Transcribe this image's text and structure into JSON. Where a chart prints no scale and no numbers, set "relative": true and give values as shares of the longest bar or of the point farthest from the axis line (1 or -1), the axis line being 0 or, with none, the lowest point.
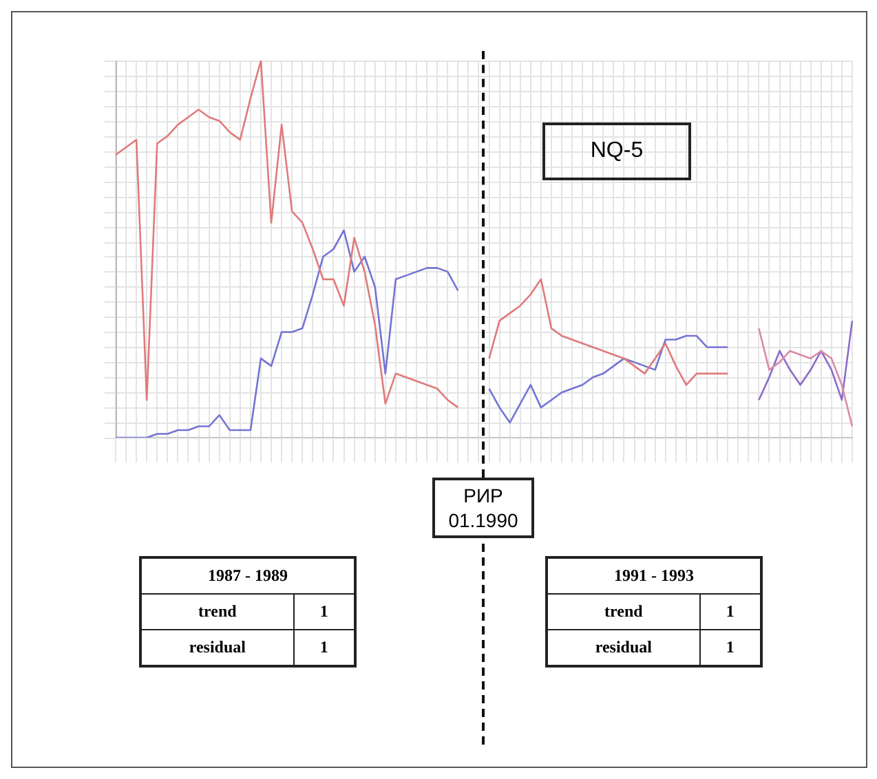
{
  "chart_data": {
    "type": "line",
    "relative": true,
    "grid": true,
    "marker": "none",
    "categories": [
      null,
      null,
      null,
      null,
      null,
      null,
      null,
      null,
      null,
      null,
      null,
      null,
      null,
      null,
      null,
      null,
      null,
      null,
      null,
      null,
      null,
      null,
      null,
      null,
      null,
      null,
      null,
      null,
      null,
      null,
      null,
      null,
      null,
      null,
      null,
      null,
      null,
      null,
      null,
      null,
      null,
      null,
      null,
      null,
      null,
      null,
      null,
      null,
      null,
      null,
      null,
      null,
      null,
      null,
      null,
      null,
      null,
      null,
      null,
      null,
      null,
      null,
      null,
      null,
      null,
      null,
      null,
      null,
      null,
      null,
      null,
      null
    ],
    "series": [
      {
        "color": "#e07a7a",
        "values": [
          0.75,
          0.77,
          0.79,
          0.1,
          0.78,
          0.8,
          0.83,
          0.85,
          0.87,
          0.85,
          0.84,
          0.81,
          0.79,
          0.9,
          1.0,
          0.57,
          0.83,
          0.6,
          0.57,
          0.5,
          0.42,
          0.42,
          0.35,
          0.53,
          0.44,
          0.3,
          0.09,
          0.17,
          0.16,
          0.15,
          0.14,
          0.13,
          0.1,
          0.08,
          null,
          null,
          null,
          null,
          null,
          null,
          null,
          null,
          null,
          null,
          null,
          null,
          null,
          null,
          null,
          null,
          null,
          null,
          null,
          null,
          null,
          null,
          null,
          null,
          null,
          null,
          null,
          null,
          null,
          null,
          null,
          null,
          null,
          null,
          null,
          null,
          null,
          null
        ]
      },
      {
        "color": "#e07a7a",
        "values": [
          null,
          null,
          null,
          null,
          null,
          null,
          null,
          null,
          null,
          null,
          null,
          null,
          null,
          null,
          null,
          null,
          null,
          null,
          null,
          null,
          null,
          null,
          null,
          null,
          null,
          null,
          null,
          null,
          null,
          null,
          null,
          null,
          null,
          null,
          null,
          null,
          0.21,
          0.31,
          0.33,
          0.35,
          0.38,
          0.42,
          0.29,
          0.27,
          0.26,
          0.25,
          0.24,
          0.23,
          0.22,
          0.21,
          0.19,
          0.17,
          0.21,
          0.25,
          0.19,
          0.14,
          0.17,
          0.17,
          0.17,
          0.17,
          null,
          null,
          null,
          null,
          null,
          null,
          null,
          null,
          null,
          null,
          null,
          null
        ]
      },
      {
        "color": "#d98aa6",
        "values": [
          null,
          null,
          null,
          null,
          null,
          null,
          null,
          null,
          null,
          null,
          null,
          null,
          null,
          null,
          null,
          null,
          null,
          null,
          null,
          null,
          null,
          null,
          null,
          null,
          null,
          null,
          null,
          null,
          null,
          null,
          null,
          null,
          null,
          null,
          null,
          null,
          null,
          null,
          null,
          null,
          null,
          null,
          null,
          null,
          null,
          null,
          null,
          null,
          null,
          null,
          null,
          null,
          null,
          null,
          null,
          null,
          null,
          null,
          null,
          null,
          null,
          null,
          0.29,
          0.18,
          0.2,
          0.23,
          0.22,
          0.21,
          0.23,
          0.21,
          0.14,
          0.03
        ]
      },
      {
        "color": "#7474d4",
        "values": [
          0.0,
          0.0,
          0.0,
          0.0,
          0.01,
          0.01,
          0.02,
          0.02,
          0.03,
          0.03,
          0.06,
          0.02,
          0.02,
          0.02,
          0.21,
          0.19,
          0.28,
          0.28,
          0.29,
          0.38,
          0.48,
          0.5,
          0.55,
          0.44,
          0.48,
          0.4,
          0.17,
          0.42,
          0.43,
          0.44,
          0.45,
          0.45,
          0.44,
          0.39,
          null,
          null,
          null,
          null,
          null,
          null,
          null,
          null,
          null,
          null,
          null,
          null,
          null,
          null,
          null,
          null,
          null,
          null,
          null,
          null,
          null,
          null,
          null,
          null,
          null,
          null,
          null,
          null,
          null,
          null,
          null,
          null,
          null,
          null,
          null,
          null,
          null,
          null
        ]
      },
      {
        "color": "#7474d4",
        "values": [
          null,
          null,
          null,
          null,
          null,
          null,
          null,
          null,
          null,
          null,
          null,
          null,
          null,
          null,
          null,
          null,
          null,
          null,
          null,
          null,
          null,
          null,
          null,
          null,
          null,
          null,
          null,
          null,
          null,
          null,
          null,
          null,
          null,
          null,
          null,
          null,
          0.13,
          0.08,
          0.04,
          0.09,
          0.14,
          0.08,
          0.1,
          0.12,
          0.13,
          0.14,
          0.16,
          0.17,
          0.19,
          0.21,
          0.2,
          0.19,
          0.18,
          0.26,
          0.26,
          0.27,
          0.27,
          0.24,
          0.24,
          0.24,
          null,
          null,
          null,
          null,
          null,
          null,
          null,
          null,
          null,
          null,
          null,
          null
        ]
      },
      {
        "color": "#8a6cc8",
        "values": [
          null,
          null,
          null,
          null,
          null,
          null,
          null,
          null,
          null,
          null,
          null,
          null,
          null,
          null,
          null,
          null,
          null,
          null,
          null,
          null,
          null,
          null,
          null,
          null,
          null,
          null,
          null,
          null,
          null,
          null,
          null,
          null,
          null,
          null,
          null,
          null,
          null,
          null,
          null,
          null,
          null,
          null,
          null,
          null,
          null,
          null,
          null,
          null,
          null,
          null,
          null,
          null,
          null,
          null,
          null,
          null,
          null,
          null,
          null,
          null,
          null,
          null,
          0.1,
          0.16,
          0.23,
          0.18,
          0.14,
          0.18,
          0.23,
          0.18,
          0.1,
          0.31
        ]
      }
    ],
    "annotations": [
      "NQ-5",
      "РИР 01.1990",
      "1987 - 1989",
      "trend",
      "1",
      "residual",
      "1",
      "1991 - 1993",
      "trend",
      "1",
      "residual",
      "1"
    ]
  }
}
